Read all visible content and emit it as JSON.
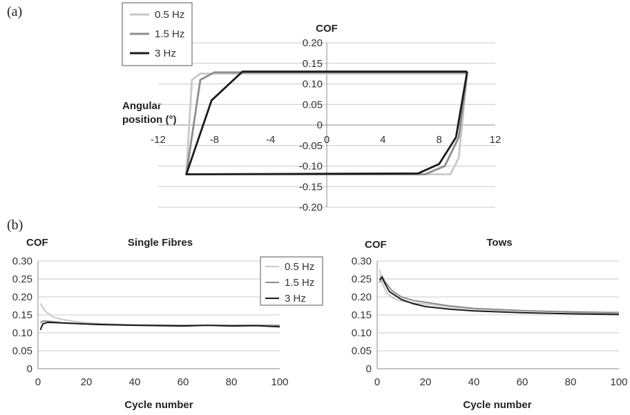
{
  "panels": {
    "a_label": "(a)",
    "b_label": "(b)"
  },
  "colors": {
    "s05": "#c8c8c8",
    "s15": "#8c8c8c",
    "s3": "#1a1a1a"
  },
  "chart_data": [
    {
      "id": "a",
      "type": "line",
      "title": "COF",
      "xlabel_line1": "Angular",
      "xlabel_line2": "position (°)",
      "xlim": [
        -12,
        12
      ],
      "ylim": [
        -0.2,
        0.2
      ],
      "x_ticks": [
        "-12",
        "-8",
        "-4",
        "0",
        "4",
        "8",
        "12"
      ],
      "y_ticks": [
        "0.20",
        "0.15",
        "0.10",
        "0.05",
        "0",
        "-0.05",
        "-0.10",
        "-0.15",
        "-0.20"
      ],
      "legend": [
        "0.5 Hz",
        "1.5 Hz",
        "3 Hz"
      ],
      "series": [
        {
          "name": "0.5 Hz",
          "points": [
            [
              10,
              0.125
            ],
            [
              10,
              0.125
            ],
            [
              -9,
              0.125
            ],
            [
              -9.6,
              0.11
            ],
            [
              -10,
              -0.12
            ],
            [
              7.0,
              -0.12
            ],
            [
              8.8,
              -0.12
            ],
            [
              9.4,
              -0.08
            ],
            [
              10,
              0.125
            ]
          ]
        },
        {
          "name": "1.5 Hz",
          "points": [
            [
              10,
              0.128
            ],
            [
              -8.0,
              0.128
            ],
            [
              -9.0,
              0.11
            ],
            [
              -10,
              -0.12
            ],
            [
              7.0,
              -0.12
            ],
            [
              8.4,
              -0.1
            ],
            [
              9.4,
              -0.03
            ],
            [
              10,
              0.128
            ]
          ]
        },
        {
          "name": "3 Hz",
          "points": [
            [
              10,
              0.13
            ],
            [
              -6.0,
              0.13
            ],
            [
              -8.2,
              0.06
            ],
            [
              -10,
              -0.12
            ],
            [
              6.5,
              -0.118
            ],
            [
              8.0,
              -0.095
            ],
            [
              9.2,
              -0.03
            ],
            [
              10,
              0.13
            ]
          ]
        }
      ]
    },
    {
      "id": "b1",
      "type": "line",
      "title": "Single Fibres",
      "ylabel": "COF",
      "xlabel": "Cycle number",
      "xlim": [
        0,
        100
      ],
      "ylim": [
        0,
        0.3
      ],
      "x_ticks": [
        "0",
        "20",
        "40",
        "60",
        "80",
        "100"
      ],
      "y_ticks": [
        "0.30",
        "0.25",
        "0.20",
        "0.15",
        "0.10",
        "0.05",
        "0"
      ],
      "legend": [
        "0.5 Hz",
        "1.5 Hz",
        "3 Hz"
      ],
      "series": [
        {
          "name": "0.5 Hz",
          "points": [
            [
              1,
              0.182
            ],
            [
              3,
              0.16
            ],
            [
              6,
              0.145
            ],
            [
              10,
              0.137
            ],
            [
              15,
              0.132
            ],
            [
              20,
              0.128
            ],
            [
              30,
              0.124
            ],
            [
              40,
              0.122
            ],
            [
              60,
              0.121
            ],
            [
              80,
              0.121
            ],
            [
              100,
              0.122
            ]
          ]
        },
        {
          "name": "1.5 Hz",
          "points": [
            [
              1,
              0.128
            ],
            [
              2,
              0.133
            ],
            [
              5,
              0.132
            ],
            [
              10,
              0.128
            ],
            [
              20,
              0.125
            ],
            [
              40,
              0.122
            ],
            [
              60,
              0.121
            ],
            [
              80,
              0.121
            ],
            [
              100,
              0.12
            ]
          ]
        },
        {
          "name": "3 Hz",
          "points": [
            [
              1,
              0.108
            ],
            [
              2,
              0.125
            ],
            [
              4,
              0.129
            ],
            [
              8,
              0.128
            ],
            [
              15,
              0.126
            ],
            [
              25,
              0.123
            ],
            [
              40,
              0.121
            ],
            [
              60,
              0.119
            ],
            [
              70,
              0.121
            ],
            [
              80,
              0.119
            ],
            [
              90,
              0.12
            ],
            [
              100,
              0.117
            ]
          ]
        }
      ]
    },
    {
      "id": "b2",
      "type": "line",
      "title": "Tows",
      "ylabel": "COF",
      "xlabel": "Cycle number",
      "xlim": [
        0,
        100
      ],
      "ylim": [
        0,
        0.3
      ],
      "x_ticks": [
        "0",
        "20",
        "40",
        "60",
        "80",
        "100"
      ],
      "y_ticks": [
        "0.30",
        "0.25",
        "0.20",
        "0.15",
        "0.10",
        "0.05",
        "0"
      ],
      "series": [
        {
          "name": "0.5 Hz",
          "points": [
            [
              1,
              0.275
            ],
            [
              2,
              0.24
            ],
            [
              4,
              0.21
            ],
            [
              7,
              0.195
            ],
            [
              10,
              0.188
            ],
            [
              15,
              0.183
            ],
            [
              20,
              0.18
            ],
            [
              30,
              0.172
            ],
            [
              40,
              0.166
            ],
            [
              60,
              0.161
            ],
            [
              80,
              0.159
            ],
            [
              100,
              0.158
            ]
          ]
        },
        {
          "name": "1.5 Hz",
          "points": [
            [
              1,
              0.24
            ],
            [
              2,
              0.258
            ],
            [
              3,
              0.245
            ],
            [
              6,
              0.218
            ],
            [
              10,
              0.2
            ],
            [
              15,
              0.19
            ],
            [
              20,
              0.185
            ],
            [
              30,
              0.175
            ],
            [
              40,
              0.168
            ],
            [
              60,
              0.162
            ],
            [
              80,
              0.158
            ],
            [
              100,
              0.155
            ]
          ]
        },
        {
          "name": "3 Hz",
          "points": [
            [
              1,
              0.248
            ],
            [
              2,
              0.255
            ],
            [
              3,
              0.24
            ],
            [
              5,
              0.215
            ],
            [
              10,
              0.193
            ],
            [
              15,
              0.181
            ],
            [
              20,
              0.173
            ],
            [
              30,
              0.166
            ],
            [
              40,
              0.161
            ],
            [
              60,
              0.156
            ],
            [
              80,
              0.153
            ],
            [
              100,
              0.151
            ]
          ]
        }
      ]
    }
  ]
}
